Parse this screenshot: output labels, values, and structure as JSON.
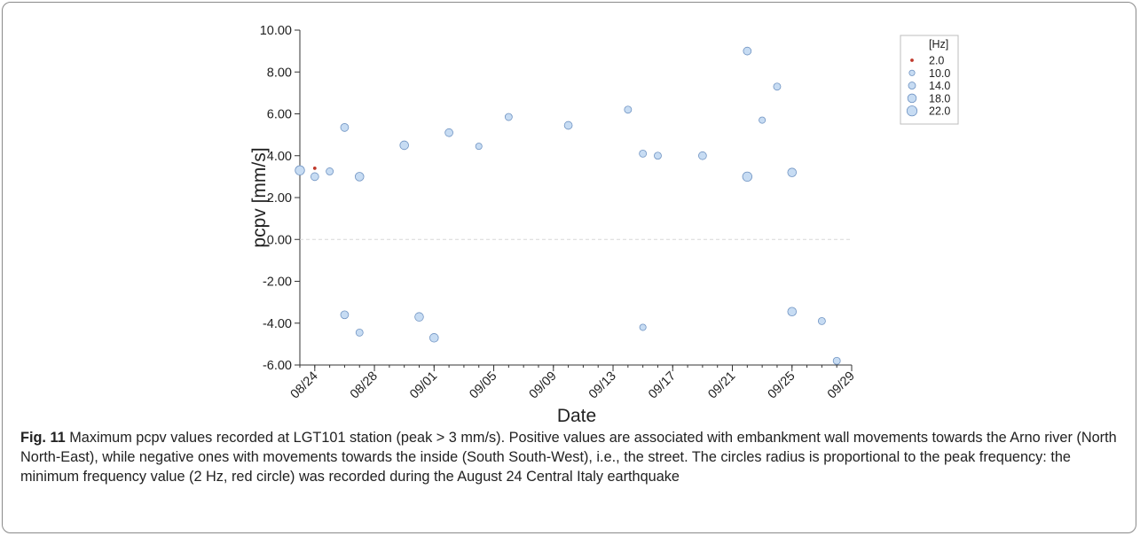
{
  "chart_data": {
    "type": "scatter",
    "xlabel": "Date",
    "ylabel": "pcpv [mm/s]",
    "x_ticks": [
      "08/24",
      "08/28",
      "09/01",
      "09/05",
      "09/09",
      "09/13",
      "09/17",
      "09/21",
      "09/25",
      "09/29"
    ],
    "x_range": [
      "08/23",
      "09/29"
    ],
    "y_ticks": [
      "10.00",
      "8.00",
      "6.00",
      "4.00",
      "2.00",
      "0.00",
      "-2.00",
      "-4.00",
      "-6.00"
    ],
    "ylim": [
      -6,
      10
    ],
    "zero_line": true,
    "grid": false,
    "legend": {
      "title": "[Hz]",
      "position": "top-right",
      "entries": [
        {
          "label": "2.0",
          "freq": 2,
          "color": "#c0392b"
        },
        {
          "label": "10.0",
          "freq": 10,
          "color": "#c7dcf3"
        },
        {
          "label": "14.0",
          "freq": 14,
          "color": "#c7dcf3"
        },
        {
          "label": "18.0",
          "freq": 18,
          "color": "#c7dcf3"
        },
        {
          "label": "22.0",
          "freq": 22,
          "color": "#c7dcf3"
        }
      ]
    },
    "marker_colors": {
      "fill": "#c7dcf3",
      "stroke": "#6f93c2",
      "lowest": "#c0392b"
    },
    "points": [
      {
        "date": "2016-08-23",
        "y": 3.3,
        "freq": 20
      },
      {
        "date": "2016-08-24",
        "y": 3.4,
        "freq": 2
      },
      {
        "date": "2016-08-24",
        "y": 3.0,
        "freq": 16
      },
      {
        "date": "2016-08-25",
        "y": 3.25,
        "freq": 14
      },
      {
        "date": "2016-08-26",
        "y": 5.35,
        "freq": 16
      },
      {
        "date": "2016-08-27",
        "y": 3.0,
        "freq": 18
      },
      {
        "date": "2016-08-30",
        "y": 4.5,
        "freq": 18
      },
      {
        "date": "2016-09-02",
        "y": 5.1,
        "freq": 16
      },
      {
        "date": "2016-09-04",
        "y": 4.45,
        "freq": 12
      },
      {
        "date": "2016-09-06",
        "y": 5.85,
        "freq": 14
      },
      {
        "date": "2016-09-10",
        "y": 5.45,
        "freq": 16
      },
      {
        "date": "2016-09-14",
        "y": 6.2,
        "freq": 14
      },
      {
        "date": "2016-09-15",
        "y": 4.1,
        "freq": 14
      },
      {
        "date": "2016-09-16",
        "y": 4.0,
        "freq": 14
      },
      {
        "date": "2016-09-19",
        "y": 4.0,
        "freq": 16
      },
      {
        "date": "2016-09-22",
        "y": 9.0,
        "freq": 16
      },
      {
        "date": "2016-09-22",
        "y": 3.0,
        "freq": 20
      },
      {
        "date": "2016-09-23",
        "y": 5.7,
        "freq": 12
      },
      {
        "date": "2016-09-24",
        "y": 7.3,
        "freq": 14
      },
      {
        "date": "2016-09-25",
        "y": 3.2,
        "freq": 18
      },
      {
        "date": "2016-08-26",
        "y": -3.6,
        "freq": 16
      },
      {
        "date": "2016-08-27",
        "y": -4.45,
        "freq": 14
      },
      {
        "date": "2016-08-31",
        "y": -3.7,
        "freq": 18
      },
      {
        "date": "2016-09-01",
        "y": -4.7,
        "freq": 18
      },
      {
        "date": "2016-09-15",
        "y": -4.2,
        "freq": 12
      },
      {
        "date": "2016-09-25",
        "y": -3.45,
        "freq": 18
      },
      {
        "date": "2016-09-27",
        "y": -3.9,
        "freq": 14
      },
      {
        "date": "2016-09-28",
        "y": -5.8,
        "freq": 14
      }
    ]
  },
  "caption": {
    "label": "Fig. 11",
    "text": "Maximum pcpv values recorded at LGT101 station (peak > 3 mm/s). Positive values are associated with embankment wall movements towards the Arno river (North North-East), while negative ones with movements towards the inside (South South-West), i.e., the street. The circles radius is proportional to the peak frequency: the minimum frequency value (2 Hz, red circle) was recorded during the August 24 Central Italy earthquake"
  }
}
